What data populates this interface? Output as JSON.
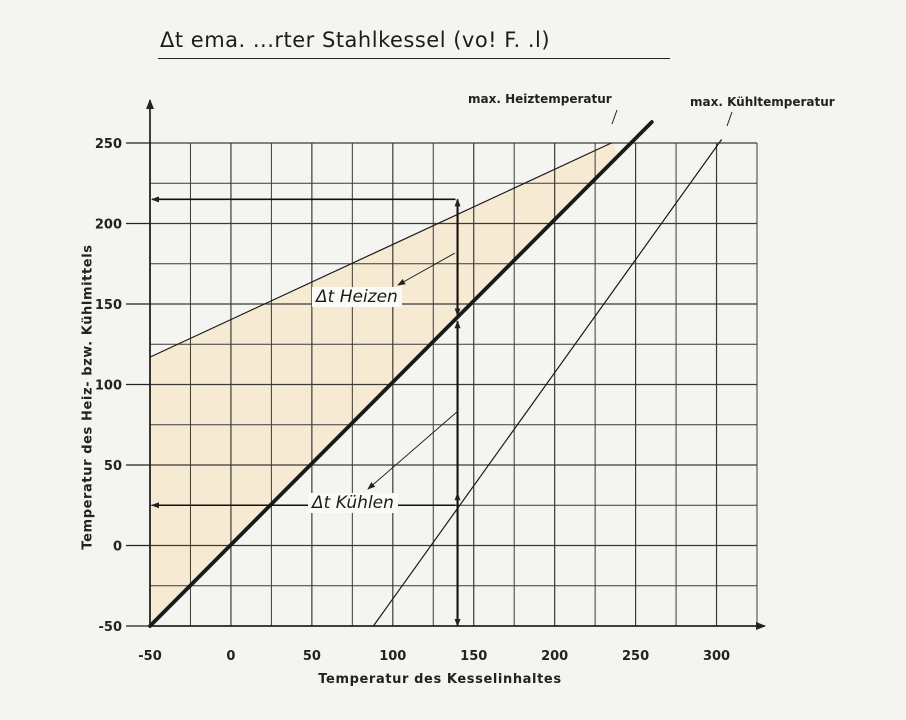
{
  "title": "Δt ema. ...rter Stahlkessel (vo! F. .l)",
  "chart_data": {
    "type": "line",
    "xlabel": "Temperatur des Kesselinhaltes",
    "ylabel": "Temperatur des Heiz- bzw. Kühlmittels",
    "xlim": [
      -50,
      325
    ],
    "ylim": [
      -50,
      250
    ],
    "grid": true,
    "x_ticks": [
      -50,
      0,
      50,
      100,
      150,
      200,
      250,
      300
    ],
    "x_tick_labels": [
      "-50",
      "0",
      "50",
      "100",
      "150",
      "200",
      "250",
      "300"
    ],
    "y_ticks": [
      -50,
      0,
      50,
      100,
      150,
      200,
      250
    ],
    "y_tick_labels": [
      "-50",
      "0",
      "50",
      "100",
      "150",
      "200",
      "250"
    ],
    "series": [
      {
        "name": "max. Heiztemperatur",
        "x": [
          -50,
          235
        ],
        "y": [
          117,
          250
        ]
      },
      {
        "name": "",
        "x": [
          -50,
          260
        ],
        "y": [
          -50,
          263
        ]
      },
      {
        "name": "max. Kühltemperatur",
        "x": [
          88,
          303
        ],
        "y": [
          -50,
          252
        ]
      }
    ],
    "annotations": [
      {
        "text": "Δt Heizen",
        "x": 140,
        "y_from": 143,
        "y_to": 215
      },
      {
        "text": "Δt Kühlen",
        "x": 140,
        "y_from": 25,
        "y_to": 143
      }
    ],
    "example_point": {
      "x": 140,
      "y_heat": 215,
      "y_cool": 25
    }
  }
}
